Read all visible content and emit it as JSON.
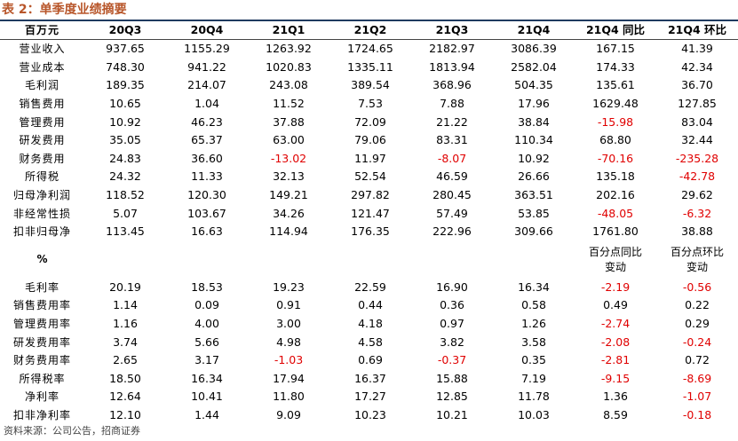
{
  "title": "表 2：单季度业绩摘要",
  "negative_color": "#e00000",
  "table": {
    "header": [
      "百万元",
      "20Q3",
      "20Q4",
      "21Q1",
      "21Q2",
      "21Q3",
      "21Q4",
      "21Q4 同比",
      "21Q4 环比"
    ],
    "rows": [
      [
        "营业收入",
        "937.65",
        "1155.29",
        "1263.92",
        "1724.65",
        "2182.97",
        "3086.39",
        "167.15",
        "41.39"
      ],
      [
        "营业成本",
        "748.30",
        "941.22",
        "1020.83",
        "1335.11",
        "1813.94",
        "2582.04",
        "174.33",
        "42.34"
      ],
      [
        "毛利润",
        "189.35",
        "214.07",
        "243.08",
        "389.54",
        "368.96",
        "504.35",
        "135.61",
        "36.70"
      ],
      [
        "销售费用",
        "10.65",
        "1.04",
        "11.52",
        "7.53",
        "7.88",
        "17.96",
        "1629.48",
        "127.85"
      ],
      [
        "管理费用",
        "10.92",
        "46.23",
        "37.88",
        "72.09",
        "21.22",
        "38.84",
        "-15.98",
        "83.04"
      ],
      [
        "研发费用",
        "35.05",
        "65.37",
        "63.00",
        "79.06",
        "83.31",
        "110.34",
        "68.80",
        "32.44"
      ],
      [
        "财务费用",
        "24.83",
        "36.60",
        "-13.02",
        "11.97",
        "-8.07",
        "10.92",
        "-70.16",
        "-235.28"
      ],
      [
        "所得税",
        "24.32",
        "11.33",
        "32.13",
        "52.54",
        "46.59",
        "26.66",
        "135.18",
        "-42.78"
      ],
      [
        "归母净利润",
        "118.52",
        "120.30",
        "149.21",
        "297.82",
        "280.45",
        "363.51",
        "202.16",
        "29.62"
      ],
      [
        "非经常性损",
        "5.07",
        "103.67",
        "34.26",
        "121.47",
        "57.49",
        "53.85",
        "-48.05",
        "-6.32"
      ],
      [
        "扣非归母净",
        "113.45",
        "16.63",
        "114.94",
        "176.35",
        "222.96",
        "309.66",
        "1761.80",
        "38.88"
      ]
    ],
    "subheader": {
      "label": "%",
      "yoy": [
        "百分点同比",
        "变动"
      ],
      "qoq": [
        "百分点环比",
        "变动"
      ]
    },
    "rows2": [
      [
        "毛利率",
        "20.19",
        "18.53",
        "19.23",
        "22.59",
        "16.90",
        "16.34",
        "-2.19",
        "-0.56"
      ],
      [
        "销售费用率",
        "1.14",
        "0.09",
        "0.91",
        "0.44",
        "0.36",
        "0.58",
        "0.49",
        "0.22"
      ],
      [
        "管理费用率",
        "1.16",
        "4.00",
        "3.00",
        "4.18",
        "0.97",
        "1.26",
        "-2.74",
        "0.29"
      ],
      [
        "研发费用率",
        "3.74",
        "5.66",
        "4.98",
        "4.58",
        "3.82",
        "3.58",
        "-2.08",
        "-0.24"
      ],
      [
        "财务费用率",
        "2.65",
        "3.17",
        "-1.03",
        "0.69",
        "-0.37",
        "0.35",
        "-2.81",
        "0.72"
      ],
      [
        "所得税率",
        "18.50",
        "16.34",
        "17.94",
        "16.37",
        "15.88",
        "7.19",
        "-9.15",
        "-8.69"
      ],
      [
        "净利率",
        "12.64",
        "10.41",
        "11.80",
        "17.27",
        "12.85",
        "11.78",
        "1.36",
        "-1.07"
      ],
      [
        "扣非净利率",
        "12.10",
        "1.44",
        "9.09",
        "10.23",
        "10.21",
        "10.03",
        "8.59",
        "-0.18"
      ]
    ]
  },
  "source": "资料来源：公司公告，招商证券"
}
